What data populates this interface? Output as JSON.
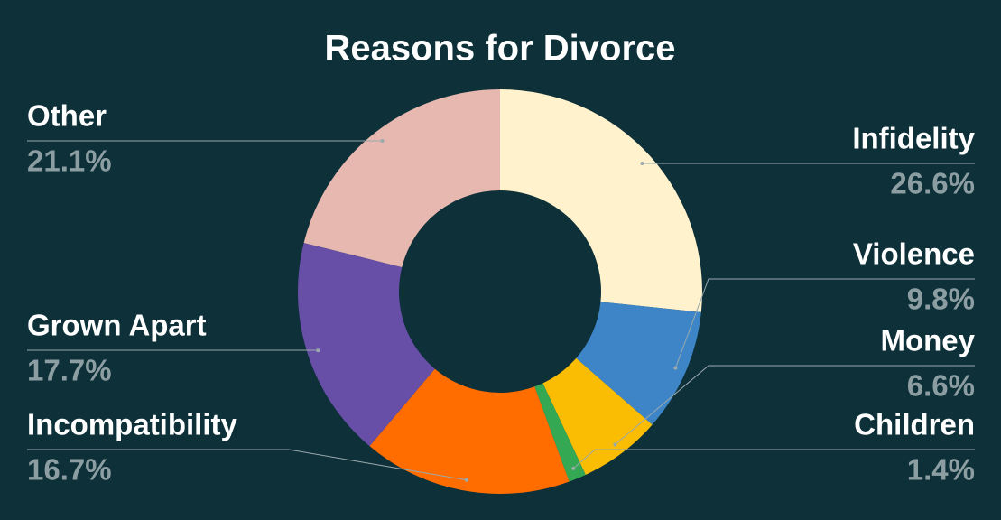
{
  "chart_data": {
    "type": "donut",
    "title": "Reasons for Divorce",
    "categories": [
      "Infidelity",
      "Violence",
      "Money",
      "Children",
      "Incompatibility",
      "Grown Apart",
      "Other"
    ],
    "values": [
      26.6,
      9.8,
      6.6,
      1.4,
      16.7,
      17.7,
      21.1
    ],
    "value_labels": [
      "26.6%",
      "9.8%",
      "6.6%",
      "1.4%",
      "16.7%",
      "17.7%",
      "21.1%"
    ],
    "colors": [
      "#fff2cc",
      "#3d85c6",
      "#fbbc04",
      "#34a853",
      "#ff6d01",
      "#674ea7",
      "#e6b8af"
    ]
  }
}
